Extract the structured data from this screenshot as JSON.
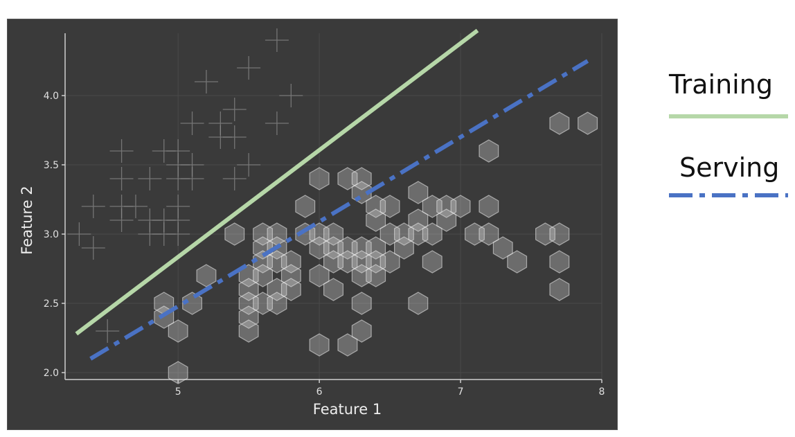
{
  "chart_data": {
    "type": "scatter",
    "xlabel": "Feature 1",
    "ylabel": "Feature 2",
    "xlim": [
      4.2,
      8.0
    ],
    "ylim": [
      1.95,
      4.45
    ],
    "xticks": [
      "5",
      "6",
      "7",
      "8"
    ],
    "yticks": [
      "2.0",
      "2.5",
      "3.0",
      "3.5",
      "4.0"
    ],
    "grid": true,
    "legend_position": "right, outside plot",
    "series": [
      {
        "marker": "plus",
        "color": "#8a8a8a",
        "points": [
          [
            5.7,
            4.4
          ],
          [
            5.5,
            4.2
          ],
          [
            5.2,
            4.1
          ],
          [
            5.8,
            4.0
          ],
          [
            5.4,
            3.9
          ],
          [
            5.1,
            3.8
          ],
          [
            5.3,
            3.8
          ],
          [
            5.7,
            3.8
          ],
          [
            5.3,
            3.7
          ],
          [
            5.4,
            3.7
          ],
          [
            4.6,
            3.6
          ],
          [
            4.9,
            3.6
          ],
          [
            5.0,
            3.6
          ],
          [
            5.0,
            3.5
          ],
          [
            5.1,
            3.5
          ],
          [
            5.5,
            3.5
          ],
          [
            4.6,
            3.4
          ],
          [
            4.8,
            3.4
          ],
          [
            5.0,
            3.4
          ],
          [
            5.1,
            3.4
          ],
          [
            5.4,
            3.4
          ],
          [
            4.6,
            3.2
          ],
          [
            4.4,
            3.2
          ],
          [
            4.7,
            3.2
          ],
          [
            5.0,
            3.2
          ],
          [
            4.6,
            3.1
          ],
          [
            4.9,
            3.1
          ],
          [
            4.8,
            3.1
          ],
          [
            5.0,
            3.1
          ],
          [
            4.8,
            3.0
          ],
          [
            4.3,
            3.0
          ],
          [
            4.9,
            3.0
          ],
          [
            5.0,
            3.0
          ],
          [
            4.4,
            2.9
          ],
          [
            4.5,
            2.3
          ]
        ]
      },
      {
        "marker": "hexagon",
        "color": "#d8d8d8",
        "points": [
          [
            7.7,
            3.8
          ],
          [
            7.9,
            3.8
          ],
          [
            7.2,
            3.6
          ],
          [
            6.0,
            3.4
          ],
          [
            6.2,
            3.4
          ],
          [
            6.3,
            3.4
          ],
          [
            6.3,
            3.3
          ],
          [
            6.7,
            3.3
          ],
          [
            5.9,
            3.2
          ],
          [
            6.4,
            3.2
          ],
          [
            6.5,
            3.2
          ],
          [
            6.8,
            3.2
          ],
          [
            6.9,
            3.2
          ],
          [
            7.0,
            3.2
          ],
          [
            7.2,
            3.2
          ],
          [
            6.4,
            3.1
          ],
          [
            6.7,
            3.1
          ],
          [
            6.9,
            3.1
          ],
          [
            5.4,
            3.0
          ],
          [
            5.6,
            3.0
          ],
          [
            5.7,
            3.0
          ],
          [
            5.9,
            3.0
          ],
          [
            6.0,
            3.0
          ],
          [
            6.1,
            3.0
          ],
          [
            6.5,
            3.0
          ],
          [
            6.6,
            3.0
          ],
          [
            6.7,
            3.0
          ],
          [
            6.8,
            3.0
          ],
          [
            7.1,
            3.0
          ],
          [
            7.2,
            3.0
          ],
          [
            7.6,
            3.0
          ],
          [
            7.7,
            3.0
          ],
          [
            5.6,
            2.9
          ],
          [
            5.7,
            2.9
          ],
          [
            6.0,
            2.9
          ],
          [
            6.1,
            2.9
          ],
          [
            6.2,
            2.9
          ],
          [
            6.3,
            2.9
          ],
          [
            6.4,
            2.9
          ],
          [
            6.6,
            2.9
          ],
          [
            7.3,
            2.9
          ],
          [
            5.6,
            2.8
          ],
          [
            5.7,
            2.8
          ],
          [
            5.8,
            2.8
          ],
          [
            6.1,
            2.8
          ],
          [
            6.2,
            2.8
          ],
          [
            6.3,
            2.8
          ],
          [
            6.4,
            2.8
          ],
          [
            6.5,
            2.8
          ],
          [
            6.8,
            2.8
          ],
          [
            7.4,
            2.8
          ],
          [
            7.7,
            2.8
          ],
          [
            5.2,
            2.7
          ],
          [
            5.5,
            2.7
          ],
          [
            5.6,
            2.7
          ],
          [
            5.8,
            2.7
          ],
          [
            6.0,
            2.7
          ],
          [
            6.3,
            2.7
          ],
          [
            6.4,
            2.7
          ],
          [
            5.5,
            2.6
          ],
          [
            5.7,
            2.6
          ],
          [
            5.8,
            2.6
          ],
          [
            6.1,
            2.6
          ],
          [
            7.7,
            2.6
          ],
          [
            4.9,
            2.5
          ],
          [
            5.1,
            2.5
          ],
          [
            5.5,
            2.5
          ],
          [
            5.6,
            2.5
          ],
          [
            5.7,
            2.5
          ],
          [
            6.3,
            2.5
          ],
          [
            6.7,
            2.5
          ],
          [
            4.9,
            2.4
          ],
          [
            5.5,
            2.4
          ],
          [
            5.0,
            2.3
          ],
          [
            5.5,
            2.3
          ],
          [
            6.3,
            2.3
          ],
          [
            6.0,
            2.2
          ],
          [
            6.2,
            2.2
          ],
          [
            5.0,
            2.0
          ]
        ]
      },
      {
        "name": "Training",
        "marker": "line",
        "style": "solid",
        "color": "#b6d7a8",
        "x": [
          4.28,
          7.12
        ],
        "y": [
          2.28,
          4.47
        ]
      },
      {
        "name": "Serving",
        "marker": "line",
        "style": "dash-dot",
        "color": "#4a72c4",
        "x": [
          4.38,
          7.9
        ],
        "y": [
          2.1,
          4.25
        ]
      }
    ]
  },
  "legend": {
    "training_label": "Training",
    "training_color": "#b6d7a8",
    "serving_label": "Serving",
    "serving_color": "#4a72c4"
  }
}
